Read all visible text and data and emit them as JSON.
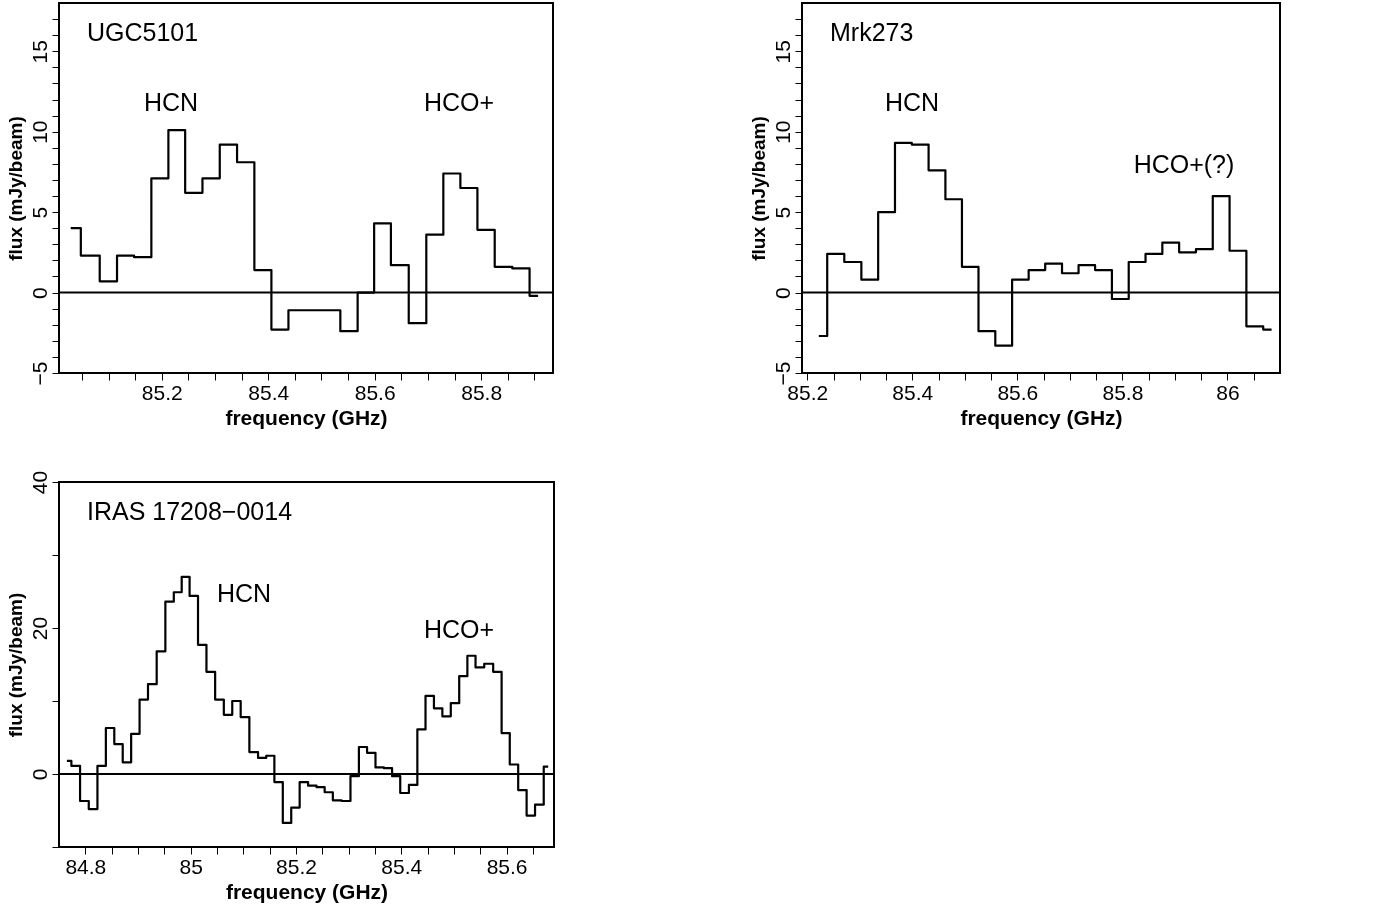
{
  "chart_data": [
    {
      "type": "step",
      "title": "UGC5101",
      "xlabel": "frequency (GHz)",
      "ylabel": "flux (mJy/beam)",
      "color": "#000000",
      "line_style": "solid",
      "marker": "none",
      "x": [
        85.029,
        85.067,
        85.1,
        85.132,
        85.164,
        85.197,
        85.228,
        85.26,
        85.293,
        85.325,
        85.358,
        85.39,
        85.422,
        85.454,
        85.487,
        85.519,
        85.552,
        85.584,
        85.614,
        85.647,
        85.681,
        85.713,
        85.745,
        85.777,
        85.809,
        85.842,
        85.875,
        85.907
      ],
      "values": [
        4.0,
        2.3,
        0.7,
        2.3,
        2.2,
        7.1,
        10.1,
        6.2,
        7.1,
        9.2,
        8.1,
        1.4,
        -2.3,
        -1.1,
        -1.1,
        -1.1,
        -2.4,
        0.0,
        4.3,
        1.7,
        -1.9,
        3.6,
        7.4,
        6.5,
        3.9,
        1.6,
        1.5,
        -0.2
      ],
      "xlim": [
        85.007,
        85.935
      ],
      "ylim": [
        -5,
        18
      ],
      "xticks": [
        {
          "value": 85.05,
          "label": null
        },
        {
          "value": 85.1,
          "label": null
        },
        {
          "value": 85.15,
          "label": null
        },
        85.2,
        {
          "value": 85.25,
          "label": null
        },
        {
          "value": 85.3,
          "label": null
        },
        {
          "value": 85.35,
          "label": null
        },
        85.4,
        {
          "value": 85.45,
          "label": null
        },
        {
          "value": 85.5,
          "label": null
        },
        {
          "value": 85.55,
          "label": null
        },
        85.6,
        {
          "value": 85.65,
          "label": null
        },
        {
          "value": 85.7,
          "label": null
        },
        {
          "value": 85.75,
          "label": null
        },
        85.8,
        {
          "value": 85.85,
          "label": null
        },
        {
          "value": 85.9,
          "label": null
        }
      ],
      "yticks": [
        {
          "value": -5,
          "label": "−5"
        },
        {
          "value": -4,
          "label": null
        },
        {
          "value": -3,
          "label": null
        },
        {
          "value": -2,
          "label": null
        },
        {
          "value": -1,
          "label": null
        },
        0,
        {
          "value": 1,
          "label": null
        },
        {
          "value": 2,
          "label": null
        },
        {
          "value": 3,
          "label": null
        },
        {
          "value": 4,
          "label": null
        },
        5,
        {
          "value": 6,
          "label": null
        },
        {
          "value": 7,
          "label": null
        },
        {
          "value": 8,
          "label": null
        },
        {
          "value": 9,
          "label": null
        },
        10,
        {
          "value": 11,
          "label": null
        },
        {
          "value": 12,
          "label": null
        },
        {
          "value": 13,
          "label": null
        },
        {
          "value": 14,
          "label": null
        },
        15,
        {
          "value": 16,
          "label": null
        },
        {
          "value": 17,
          "label": null
        }
      ],
      "ref_lines": [
        {
          "axis": "y",
          "value": 0,
          "color": "#000000"
        }
      ],
      "annotations": [
        "HCN",
        "HCO+"
      ]
    },
    {
      "type": "step",
      "title": "Mrk273",
      "xlabel": "frequency (GHz)",
      "ylabel": "flux (mJy/beam)",
      "color": "#000000",
      "line_style": "solid",
      "marker": "none",
      "x": [
        85.222,
        85.254,
        85.287,
        85.319,
        85.351,
        85.383,
        85.415,
        85.447,
        85.479,
        85.51,
        85.542,
        85.574,
        85.606,
        85.637,
        85.669,
        85.701,
        85.732,
        85.764,
        85.796,
        85.828,
        85.86,
        85.892,
        85.924,
        85.956,
        85.988,
        86.02,
        86.052,
        86.084
      ],
      "values": [
        -2.7,
        2.4,
        1.9,
        0.8,
        5.0,
        9.3,
        9.2,
        7.6,
        5.8,
        1.6,
        -2.4,
        -3.3,
        0.8,
        1.4,
        1.8,
        1.2,
        1.7,
        1.4,
        -0.4,
        1.9,
        2.4,
        3.1,
        2.5,
        2.7,
        6.0,
        2.6,
        -2.1,
        -2.3
      ],
      "xlim": [
        85.19,
        86.1
      ],
      "ylim": [
        -5,
        18
      ],
      "xticks": [
        85.2,
        {
          "value": 85.25,
          "label": null
        },
        {
          "value": 85.3,
          "label": null
        },
        {
          "value": 85.35,
          "label": null
        },
        85.4,
        {
          "value": 85.45,
          "label": null
        },
        {
          "value": 85.5,
          "label": null
        },
        {
          "value": 85.55,
          "label": null
        },
        85.6,
        {
          "value": 85.65,
          "label": null
        },
        {
          "value": 85.7,
          "label": null
        },
        {
          "value": 85.75,
          "label": null
        },
        85.8,
        {
          "value": 85.85,
          "label": null
        },
        {
          "value": 85.9,
          "label": null
        },
        {
          "value": 85.95,
          "label": null
        },
        86,
        {
          "value": 86.05,
          "label": null
        }
      ],
      "yticks": [
        {
          "value": -5,
          "label": "−5"
        },
        {
          "value": -4,
          "label": null
        },
        {
          "value": -3,
          "label": null
        },
        {
          "value": -2,
          "label": null
        },
        {
          "value": -1,
          "label": null
        },
        0,
        {
          "value": 1,
          "label": null
        },
        {
          "value": 2,
          "label": null
        },
        {
          "value": 3,
          "label": null
        },
        {
          "value": 4,
          "label": null
        },
        5,
        {
          "value": 6,
          "label": null
        },
        {
          "value": 7,
          "label": null
        },
        {
          "value": 8,
          "label": null
        },
        {
          "value": 9,
          "label": null
        },
        10,
        {
          "value": 11,
          "label": null
        },
        {
          "value": 12,
          "label": null
        },
        {
          "value": 13,
          "label": null
        },
        {
          "value": 14,
          "label": null
        },
        15,
        {
          "value": 16,
          "label": null
        },
        {
          "value": 17,
          "label": null
        }
      ],
      "ref_lines": [
        {
          "axis": "y",
          "value": 0,
          "color": "#000000"
        }
      ],
      "annotations": [
        "HCN",
        "HCO+(?)"
      ]
    },
    {
      "type": "step",
      "title": "IRAS 17208−0014",
      "xlabel": "frequency (GHz)",
      "ylabel": "flux (mJy/beam)",
      "color": "#000000",
      "line_style": "solid",
      "marker": "none",
      "x": [
        84.765,
        84.782,
        84.798,
        84.815,
        84.831,
        84.847,
        84.863,
        84.879,
        84.895,
        84.911,
        84.927,
        84.944,
        84.96,
        84.976,
        84.99,
        85.006,
        85.022,
        85.038,
        85.055,
        85.071,
        85.087,
        85.103,
        85.12,
        85.136,
        85.151,
        85.167,
        85.183,
        85.199,
        85.215,
        85.231,
        85.247,
        85.262,
        85.278,
        85.295,
        85.312,
        85.327,
        85.343,
        85.359,
        85.375,
        85.39,
        85.406,
        85.423,
        85.438,
        85.454,
        85.47,
        85.486,
        85.502,
        85.518,
        85.533,
        85.549,
        85.566,
        85.583,
        85.598,
        85.614,
        85.63,
        85.646,
        85.662,
        85.679
      ],
      "values": [
        1.8,
        1.1,
        -3.7,
        -4.8,
        1.1,
        6.3,
        4.1,
        1.6,
        5.5,
        10.2,
        12.3,
        16.8,
        23.6,
        24.9,
        27.0,
        24.4,
        17.7,
        14.0,
        10.2,
        8.1,
        10.0,
        7.8,
        3.0,
        2.2,
        2.5,
        -1.1,
        -6.7,
        -4.6,
        -1.1,
        -1.6,
        -1.8,
        -2.5,
        -3.6,
        -3.7,
        -0.3,
        3.7,
        2.9,
        0.9,
        0.8,
        -0.3,
        -2.6,
        -1.5,
        6.1,
        10.7,
        9.0,
        7.9,
        9.7,
        13.4,
        16.2,
        14.6,
        15.1,
        14.0,
        5.6,
        1.3,
        -2.2,
        -5.7,
        -4.2,
        1.0
      ],
      "xlim": [
        84.75,
        85.69
      ],
      "ylim": [
        -10,
        40
      ],
      "xticks": [
        84.8,
        {
          "value": 84.85,
          "label": null
        },
        {
          "value": 84.9,
          "label": null
        },
        {
          "value": 84.95,
          "label": null
        },
        85,
        {
          "value": 85.05,
          "label": null
        },
        {
          "value": 85.1,
          "label": null
        },
        {
          "value": 85.15,
          "label": null
        },
        85.2,
        {
          "value": 85.25,
          "label": null
        },
        {
          "value": 85.3,
          "label": null
        },
        {
          "value": 85.35,
          "label": null
        },
        85.4,
        {
          "value": 85.45,
          "label": null
        },
        {
          "value": 85.5,
          "label": null
        },
        {
          "value": 85.55,
          "label": null
        },
        85.6,
        {
          "value": 85.65,
          "label": null
        }
      ],
      "yticks": [
        {
          "value": -10,
          "label": null
        },
        0,
        {
          "value": 10,
          "label": null
        },
        20,
        {
          "value": 30,
          "label": null
        },
        40
      ],
      "ref_lines": [
        {
          "axis": "y",
          "value": 0,
          "color": "#000000"
        }
      ],
      "annotations": [
        "HCN",
        "HCO+"
      ]
    }
  ]
}
